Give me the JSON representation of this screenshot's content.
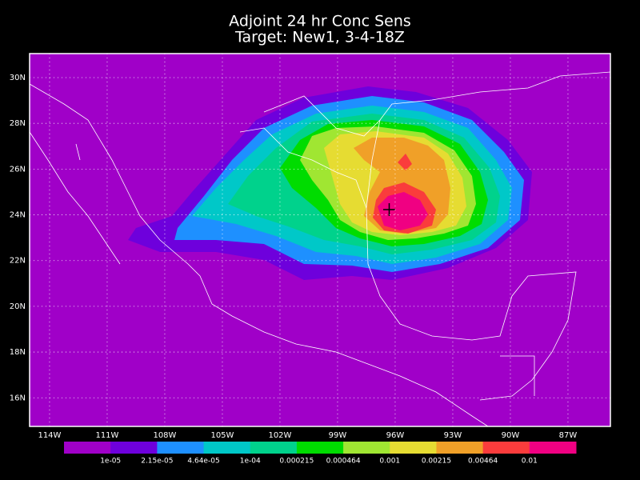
{
  "chart_data": {
    "type": "contour-map",
    "title": [
      "Adjoint 24 hr Conc Sens",
      "Target: New1, 3-4-18Z"
    ],
    "xlim": [
      -115.04,
      -84.79
    ],
    "ylim": [
      14.75,
      31.05
    ],
    "xticks": [
      {
        "value": -114,
        "label": "114W"
      },
      {
        "value": -111,
        "label": "111W"
      },
      {
        "value": -108,
        "label": "108W"
      },
      {
        "value": -105,
        "label": "105W"
      },
      {
        "value": -102,
        "label": "102W"
      },
      {
        "value": -99,
        "label": "99W"
      },
      {
        "value": -96,
        "label": "96W"
      },
      {
        "value": -93,
        "label": "93W"
      },
      {
        "value": -90,
        "label": "90W"
      },
      {
        "value": -87,
        "label": "87W"
      }
    ],
    "yticks": [
      {
        "value": 16,
        "label": "16N"
      },
      {
        "value": 18,
        "label": "18N"
      },
      {
        "value": 20,
        "label": "20N"
      },
      {
        "value": 22,
        "label": "22N"
      },
      {
        "value": 24,
        "label": "24N"
      },
      {
        "value": 26,
        "label": "26N"
      },
      {
        "value": 28,
        "label": "28N"
      },
      {
        "value": 30,
        "label": "30N"
      }
    ],
    "levels": [
      {
        "value": 1e-05,
        "label": "1e-05"
      },
      {
        "value": 2.15e-05,
        "label": "2.15e-05"
      },
      {
        "value": 4.64e-05,
        "label": "4.64e-05"
      },
      {
        "value": 0.0001,
        "label": "1e-04"
      },
      0.000215,
      0.000464,
      0.001,
      0.00215,
      0.00464,
      0.01
    ],
    "colors": [
      "#a000c8",
      "#6e00dc",
      "#1e90ff",
      "#00c8c8",
      "#00d28c",
      "#00dc00",
      "#a0e632",
      "#e6dc32",
      "#f0a028",
      "#fa3c3c",
      "#f00082"
    ],
    "grid": true
  }
}
